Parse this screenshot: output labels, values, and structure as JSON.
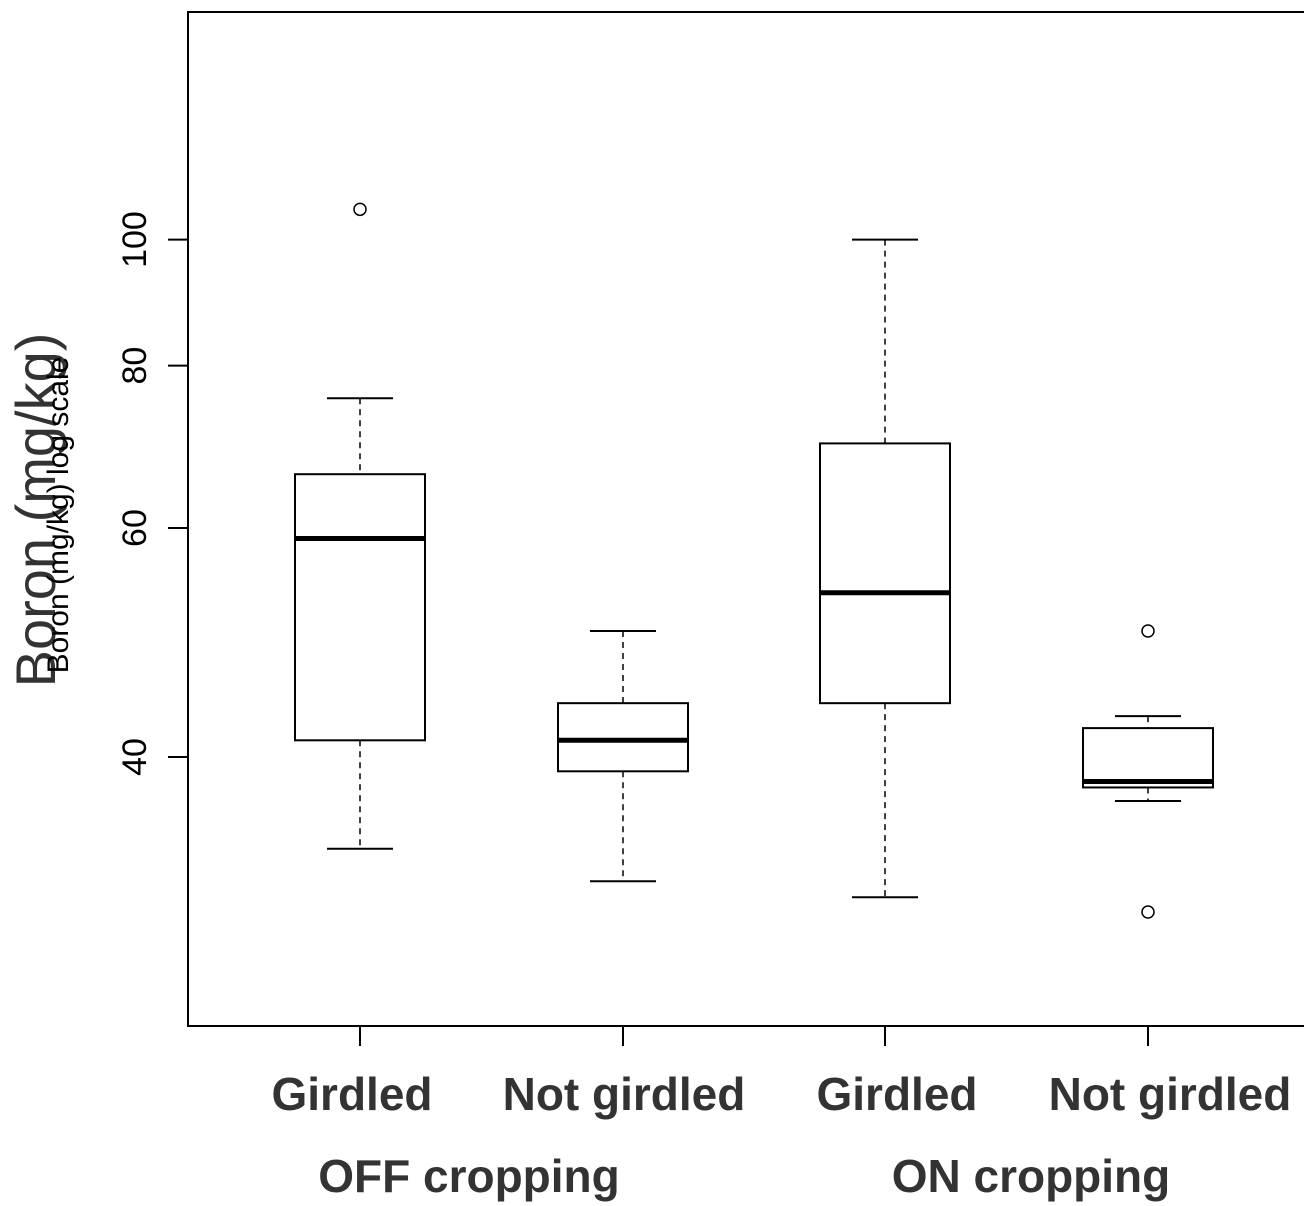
{
  "chart_data": {
    "type": "box",
    "ylabel": "Boron (mg/kg)",
    "ylabel_overlay": "Boron (mg/kg) log scale",
    "y_scale": "log",
    "ylim": [
      29.5,
      109
    ],
    "yticks": [
      40,
      60,
      80,
      100
    ],
    "categories": [
      "Girdled",
      "Not girdled",
      "Girdled",
      "Not girdled"
    ],
    "groups": [
      {
        "label": "OFF cropping",
        "members": [
          0,
          1
        ]
      },
      {
        "label": "ON cropping",
        "members": [
          2,
          3
        ]
      }
    ],
    "boxes": [
      {
        "category": "Girdled",
        "group": "OFF cropping",
        "whisker_low": 34.0,
        "q1": 41.2,
        "median": 58.9,
        "q3": 66.0,
        "whisker_high": 75.5,
        "outliers": [
          105.5
        ]
      },
      {
        "category": "Not girdled",
        "group": "OFF cropping",
        "whisker_low": 32.1,
        "q1": 39.0,
        "median": 41.2,
        "q3": 44.0,
        "whisker_high": 50.0,
        "outliers": []
      },
      {
        "category": "Girdled",
        "group": "ON cropping",
        "whisker_low": 31.2,
        "q1": 44.0,
        "median": 53.5,
        "q3": 69.7,
        "whisker_high": 100.0,
        "outliers": []
      },
      {
        "category": "Not girdled",
        "group": "ON cropping",
        "whisker_low": 37.0,
        "q1": 37.9,
        "median": 38.3,
        "q3": 42.1,
        "whisker_high": 43.0,
        "outliers": [
          50.0,
          30.4
        ]
      }
    ],
    "grid": false,
    "legend": "none"
  }
}
